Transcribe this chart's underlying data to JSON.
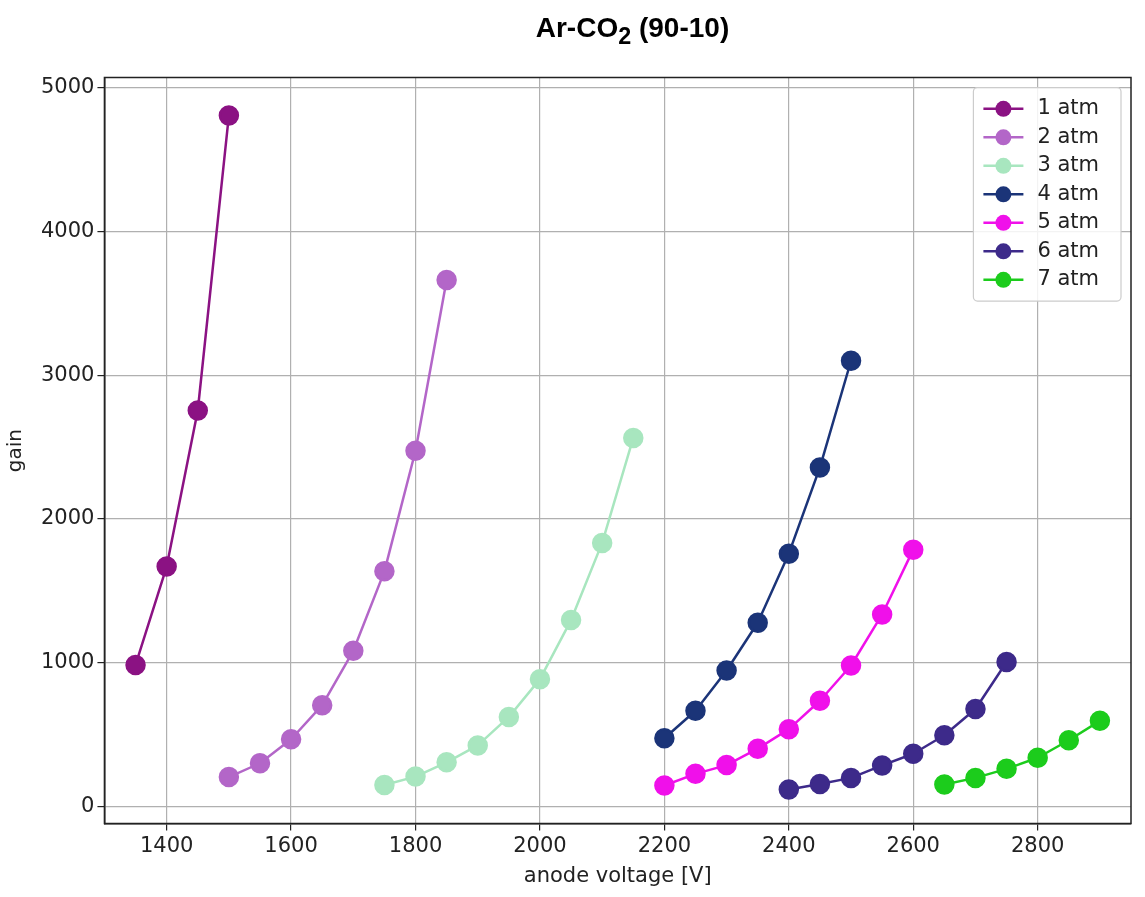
{
  "chart_data": {
    "type": "line",
    "title": "Ar-CO$_{2}$ (90-10)",
    "xlabel": "anode voltage [V]",
    "ylabel": "gain",
    "xlim": [
      1300,
      2950
    ],
    "xticks": [
      1400,
      1600,
      1800,
      2000,
      2200,
      2400,
      2600,
      2800
    ],
    "ylim": [
      -120,
      5070
    ],
    "yticks": [
      0,
      1000,
      2000,
      3000,
      4000,
      5000
    ],
    "grid": true,
    "legend": "top right",
    "marker": "circle",
    "line_style": "solid",
    "series": [
      {
        "name": "1 atm",
        "color": "#8b1283",
        "x": [
          1350,
          1400,
          1450,
          1500
        ],
        "values": [
          984,
          1668,
          2754,
          4807
        ]
      },
      {
        "name": "2 atm",
        "color": "#b366c8",
        "x": [
          1500,
          1550,
          1600,
          1650,
          1700,
          1750,
          1800,
          1850
        ],
        "values": [
          204,
          300,
          467,
          704,
          1082,
          1635,
          2474,
          3662
        ]
      },
      {
        "name": "3 atm",
        "color": "#a8e6bf",
        "x": [
          1750,
          1800,
          1850,
          1900,
          1950,
          2000,
          2050,
          2100,
          2150
        ],
        "values": [
          148,
          207,
          306,
          424,
          622,
          885,
          1296,
          1833,
          2563
        ]
      },
      {
        "name": "4 atm",
        "color": "#1b3478",
        "x": [
          2200,
          2250,
          2300,
          2350,
          2400,
          2450,
          2500
        ],
        "values": [
          474,
          665,
          945,
          1277,
          1758,
          2358,
          3100
        ]
      },
      {
        "name": "5 atm",
        "color": "#f010ea",
        "x": [
          2200,
          2250,
          2300,
          2350,
          2400,
          2450,
          2500,
          2550,
          2600
        ],
        "values": [
          145,
          226,
          287,
          401,
          537,
          735,
          980,
          1335,
          1786
        ]
      },
      {
        "name": "6 atm",
        "color": "#3d2a8a",
        "x": [
          2400,
          2450,
          2500,
          2550,
          2600,
          2650,
          2700,
          2750
        ],
        "values": [
          117,
          156,
          198,
          285,
          366,
          495,
          677,
          1004
        ]
      },
      {
        "name": "7 atm",
        "color": "#1ccc1c",
        "x": [
          2650,
          2700,
          2750,
          2800,
          2850,
          2900
        ],
        "values": [
          152,
          198,
          261,
          338,
          460,
          595
        ]
      }
    ]
  }
}
